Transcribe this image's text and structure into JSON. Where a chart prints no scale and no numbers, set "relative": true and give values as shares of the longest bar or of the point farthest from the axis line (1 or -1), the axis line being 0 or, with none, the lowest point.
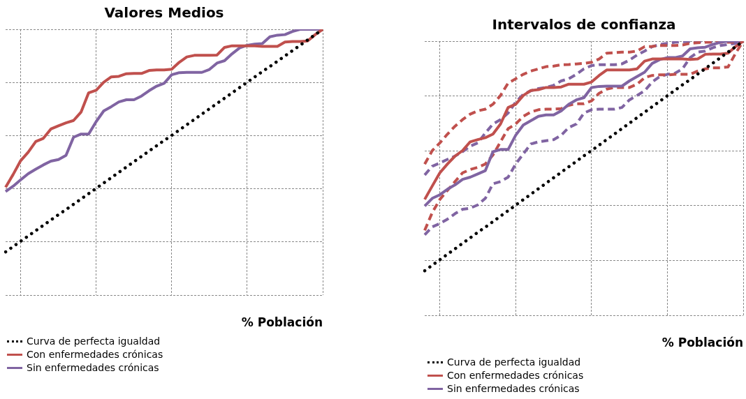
{
  "chart_data": [
    {
      "type": "line",
      "title": "Valores Medios",
      "xlabel": "% Población",
      "relative": true,
      "grid": true,
      "legend": "bottom",
      "marker": "none",
      "categories": [
        null,
        null,
        null,
        null,
        null,
        null,
        null,
        null,
        null,
        null,
        null,
        null,
        null,
        null,
        null,
        null,
        null,
        null,
        null,
        null,
        null,
        null,
        null,
        null,
        null,
        null,
        null,
        null,
        null,
        null,
        null,
        null,
        null,
        null,
        null,
        null,
        null,
        null,
        null,
        null,
        null,
        null,
        null
      ],
      "series": [
        {
          "name": "Curva de perfecta igualdad",
          "color": "#000000",
          "line_style": "dotted",
          "values": [
            0.163,
            0.183,
            0.203,
            0.223,
            0.243,
            0.263,
            0.283,
            0.303,
            0.322,
            0.342,
            0.362,
            0.382,
            0.402,
            0.422,
            0.442,
            0.462,
            0.482,
            0.502,
            0.522,
            0.542,
            0.562,
            0.582,
            0.601,
            0.621,
            0.641,
            0.661,
            0.681,
            0.701,
            0.721,
            0.741,
            0.761,
            0.781,
            0.801,
            0.821,
            0.841,
            0.86,
            0.88,
            0.9,
            0.92,
            0.94,
            0.96,
            0.98,
            1.0
          ]
        },
        {
          "name": "Con enfermedades crónicas",
          "color": "#c0504d",
          "line_style": "solid",
          "values": [
            0.406,
            0.454,
            0.506,
            0.538,
            0.578,
            0.59,
            0.625,
            0.637,
            0.648,
            0.657,
            0.689,
            0.761,
            0.771,
            0.801,
            0.821,
            0.823,
            0.833,
            0.834,
            0.834,
            0.845,
            0.847,
            0.847,
            0.85,
            0.876,
            0.896,
            0.902,
            0.902,
            0.902,
            0.903,
            0.932,
            0.938,
            0.938,
            0.938,
            0.938,
            0.936,
            0.936,
            0.936,
            0.952,
            0.954,
            0.954,
            0.956,
            0.98,
            1.0
          ]
        },
        {
          "name": "Sin enfermedades crónicas",
          "color": "#8064a2",
          "line_style": "solid",
          "values": [
            0.39,
            0.41,
            0.434,
            0.457,
            0.474,
            0.49,
            0.504,
            0.51,
            0.526,
            0.594,
            0.606,
            0.606,
            0.653,
            0.693,
            0.709,
            0.727,
            0.735,
            0.735,
            0.749,
            0.769,
            0.786,
            0.797,
            0.829,
            0.837,
            0.838,
            0.838,
            0.838,
            0.849,
            0.873,
            0.882,
            0.908,
            0.93,
            0.94,
            0.944,
            0.946,
            0.972,
            0.978,
            0.98,
            0.992,
            1.0,
            1.0,
            1.0,
            1.0
          ]
        }
      ]
    },
    {
      "type": "line",
      "title": "Intervalos de confianza",
      "xlabel": "% Población",
      "relative": true,
      "grid": true,
      "legend": "bottom",
      "marker": "none",
      "categories": [
        null,
        null,
        null,
        null,
        null,
        null,
        null,
        null,
        null,
        null,
        null,
        null,
        null,
        null,
        null,
        null,
        null,
        null,
        null,
        null,
        null,
        null,
        null,
        null,
        null,
        null,
        null,
        null,
        null,
        null,
        null,
        null,
        null,
        null,
        null,
        null,
        null,
        null,
        null,
        null,
        null,
        null,
        null
      ],
      "series": [
        {
          "name": "Curva de perfecta igualdad",
          "color": "#000000",
          "line_style": "dotted",
          "values": [
            0.163,
            0.183,
            0.203,
            0.223,
            0.243,
            0.263,
            0.283,
            0.303,
            0.322,
            0.342,
            0.362,
            0.382,
            0.402,
            0.422,
            0.442,
            0.462,
            0.482,
            0.502,
            0.522,
            0.542,
            0.562,
            0.582,
            0.601,
            0.621,
            0.641,
            0.661,
            0.681,
            0.701,
            0.721,
            0.741,
            0.761,
            0.781,
            0.801,
            0.821,
            0.841,
            0.86,
            0.88,
            0.9,
            0.92,
            0.94,
            0.96,
            0.98,
            1.0
          ]
        },
        {
          "name": "Con enfermedades crónicas",
          "color": "#c0504d",
          "line_style": "solid",
          "values": [
            0.423,
            0.472,
            0.52,
            0.552,
            0.581,
            0.601,
            0.633,
            0.641,
            0.648,
            0.661,
            0.698,
            0.758,
            0.77,
            0.802,
            0.82,
            0.823,
            0.831,
            0.831,
            0.833,
            0.843,
            0.843,
            0.843,
            0.851,
            0.875,
            0.895,
            0.895,
            0.895,
            0.895,
            0.899,
            0.927,
            0.935,
            0.935,
            0.935,
            0.935,
            0.935,
            0.933,
            0.935,
            0.952,
            0.953,
            0.953,
            0.956,
            0.98,
            1.0
          ]
        },
        {
          "name": "Sin enfermedades crónicas",
          "color": "#8064a2",
          "line_style": "solid",
          "values": [
            0.399,
            0.427,
            0.44,
            0.46,
            0.476,
            0.496,
            0.504,
            0.516,
            0.528,
            0.597,
            0.605,
            0.605,
            0.657,
            0.694,
            0.71,
            0.726,
            0.731,
            0.731,
            0.746,
            0.77,
            0.786,
            0.794,
            0.831,
            0.835,
            0.836,
            0.836,
            0.836,
            0.855,
            0.871,
            0.887,
            0.919,
            0.933,
            0.94,
            0.94,
            0.946,
            0.972,
            0.976,
            0.978,
            0.988,
            0.996,
            1.0,
            1.0,
            1.0
          ]
        },
        {
          "color": "#c0504d",
          "line_style": "dashed",
          "values": [
            0.552,
            0.601,
            0.629,
            0.661,
            0.69,
            0.714,
            0.734,
            0.746,
            0.752,
            0.77,
            0.802,
            0.847,
            0.863,
            0.879,
            0.891,
            0.899,
            0.907,
            0.909,
            0.914,
            0.915,
            0.917,
            0.919,
            0.923,
            0.935,
            0.956,
            0.958,
            0.96,
            0.96,
            0.964,
            0.98,
            0.981,
            0.984,
            0.984,
            0.984,
            0.986,
            0.992,
            0.994,
            0.996,
            0.996,
            0.996,
            0.996,
            0.996,
            1.0
          ]
        },
        {
          "color": "#c0504d",
          "line_style": "dashed",
          "values": [
            0.31,
            0.375,
            0.423,
            0.456,
            0.488,
            0.52,
            0.532,
            0.54,
            0.552,
            0.585,
            0.633,
            0.681,
            0.698,
            0.726,
            0.742,
            0.75,
            0.752,
            0.752,
            0.754,
            0.766,
            0.772,
            0.772,
            0.782,
            0.81,
            0.825,
            0.831,
            0.831,
            0.831,
            0.843,
            0.867,
            0.875,
            0.877,
            0.877,
            0.879,
            0.879,
            0.879,
            0.891,
            0.899,
            0.903,
            0.903,
            0.906,
            0.956,
            1.0
          ]
        },
        {
          "color": "#8064a2",
          "line_style": "dashed",
          "values": [
            0.512,
            0.544,
            0.556,
            0.569,
            0.581,
            0.597,
            0.617,
            0.629,
            0.665,
            0.698,
            0.714,
            0.738,
            0.778,
            0.806,
            0.819,
            0.827,
            0.831,
            0.839,
            0.855,
            0.863,
            0.879,
            0.899,
            0.911,
            0.914,
            0.914,
            0.914,
            0.917,
            0.931,
            0.949,
            0.964,
            0.98,
            0.988,
            0.992,
            0.996,
            0.998,
            0.998,
            0.998,
            0.998,
            0.998,
            0.998,
            0.998,
            0.998,
            1.0
          ]
        },
        {
          "color": "#8064a2",
          "line_style": "dashed",
          "values": [
            0.294,
            0.323,
            0.335,
            0.351,
            0.371,
            0.387,
            0.391,
            0.403,
            0.427,
            0.48,
            0.488,
            0.504,
            0.552,
            0.589,
            0.625,
            0.633,
            0.637,
            0.641,
            0.657,
            0.685,
            0.698,
            0.738,
            0.75,
            0.752,
            0.752,
            0.752,
            0.758,
            0.786,
            0.802,
            0.819,
            0.851,
            0.871,
            0.879,
            0.883,
            0.899,
            0.94,
            0.96,
            0.964,
            0.976,
            0.984,
            0.988,
            0.992,
            1.0
          ]
        }
      ]
    }
  ]
}
